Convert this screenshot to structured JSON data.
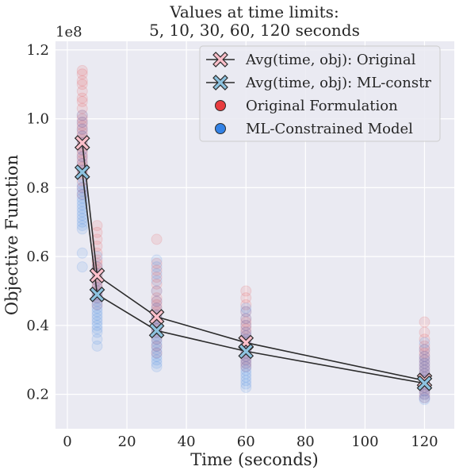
{
  "chart_data": {
    "type": "scatter",
    "title_lines": [
      "Values at time limits:",
      "5, 10, 30, 60, 120 seconds"
    ],
    "xlabel": "Time (seconds)",
    "ylabel": "Objective Function",
    "y_offset_label": "1e8",
    "xlim": [
      -4,
      130
    ],
    "ylim": [
      0.1,
      1.225
    ],
    "x_ticks": [
      0,
      20,
      40,
      60,
      80,
      100,
      120
    ],
    "y_ticks": [
      0.2,
      0.4,
      0.6,
      0.8,
      1.0,
      1.2
    ],
    "y_tick_labels": [
      "0.2",
      "0.4",
      "0.6",
      "0.8",
      "1.0",
      "1.2"
    ],
    "grid": true,
    "legend_position": "top-right",
    "legend": [
      {
        "label": "Avg(time, obj): Original",
        "kind": "line-x",
        "color": "#ffc0cb"
      },
      {
        "label": "Avg(time, obj): ML-constr",
        "kind": "line-x",
        "color": "#8ec3e0"
      },
      {
        "label": "Original Formulation",
        "kind": "dot",
        "color": "#e8292b"
      },
      {
        "label": "ML-Constrained Model",
        "kind": "dot",
        "color": "#1f77e4"
      }
    ],
    "series": [
      {
        "name": "Avg(time, obj): Original",
        "x": [
          5,
          10,
          30,
          60,
          120
        ],
        "y": [
          0.93,
          0.545,
          0.425,
          0.35,
          0.24
        ]
      },
      {
        "name": "Avg(time, obj): ML-constr",
        "x": [
          5,
          10,
          30,
          60,
          120
        ],
        "y": [
          0.845,
          0.49,
          0.385,
          0.325,
          0.232
        ]
      }
    ],
    "scatter": [
      {
        "name": "Original Formulation",
        "color": "#e8292b",
        "points": [
          {
            "x": 5,
            "y": [
              1.14,
              1.13,
              1.11,
              1.1,
              1.08,
              1.06,
              1.05,
              1.03,
              1.01,
              1.0,
              0.99,
              0.98,
              0.97,
              0.96,
              0.95,
              0.94,
              0.93,
              0.92,
              0.91,
              0.9,
              0.89,
              0.88,
              0.87,
              0.86,
              0.85,
              0.84,
              0.82,
              0.8,
              0.78
            ]
          },
          {
            "x": 10,
            "y": [
              0.69,
              0.67,
              0.65,
              0.63,
              0.61,
              0.59,
              0.58,
              0.57,
              0.56,
              0.55,
              0.54,
              0.53,
              0.52,
              0.51,
              0.5,
              0.49,
              0.48,
              0.46
            ]
          },
          {
            "x": 30,
            "y": [
              0.65,
              0.58,
              0.56,
              0.54,
              0.52,
              0.5,
              0.48,
              0.47,
              0.46,
              0.45,
              0.44,
              0.43,
              0.42,
              0.41,
              0.4,
              0.39,
              0.38,
              0.36,
              0.34,
              0.32
            ]
          },
          {
            "x": 60,
            "y": [
              0.5,
              0.48,
              0.46,
              0.44,
              0.42,
              0.41,
              0.4,
              0.39,
              0.38,
              0.37,
              0.36,
              0.35,
              0.34,
              0.33,
              0.32,
              0.31,
              0.3,
              0.29,
              0.28
            ]
          },
          {
            "x": 120,
            "y": [
              0.41,
              0.38,
              0.36,
              0.34,
              0.33,
              0.32,
              0.31,
              0.3,
              0.29,
              0.28,
              0.27,
              0.26,
              0.25,
              0.24,
              0.23,
              0.22,
              0.21,
              0.2,
              0.19
            ]
          }
        ]
      },
      {
        "name": "ML-Constrained Model",
        "color": "#1f77e4",
        "points": [
          {
            "x": 5,
            "y": [
              1.01,
              0.99,
              0.97,
              0.95,
              0.93,
              0.91,
              0.89,
              0.87,
              0.85,
              0.83,
              0.81,
              0.8,
              0.79,
              0.78,
              0.77,
              0.76,
              0.75,
              0.74,
              0.73,
              0.72,
              0.71,
              0.7,
              0.69,
              0.68,
              0.61,
              0.57
            ]
          },
          {
            "x": 10,
            "y": [
              0.6,
              0.57,
              0.55,
              0.53,
              0.51,
              0.5,
              0.49,
              0.48,
              0.47,
              0.46,
              0.45,
              0.44,
              0.43,
              0.42,
              0.41,
              0.4,
              0.39,
              0.38,
              0.36,
              0.34
            ]
          },
          {
            "x": 30,
            "y": [
              0.59,
              0.57,
              0.55,
              0.53,
              0.5,
              0.47,
              0.45,
              0.43,
              0.42,
              0.41,
              0.4,
              0.39,
              0.38,
              0.37,
              0.36,
              0.35,
              0.34,
              0.33,
              0.32,
              0.31,
              0.3,
              0.29,
              0.28
            ]
          },
          {
            "x": 60,
            "y": [
              0.45,
              0.44,
              0.42,
              0.4,
              0.38,
              0.37,
              0.36,
              0.35,
              0.34,
              0.33,
              0.32,
              0.31,
              0.3,
              0.29,
              0.28,
              0.27,
              0.26,
              0.25,
              0.24,
              0.23,
              0.22
            ]
          },
          {
            "x": 120,
            "y": [
              0.35,
              0.33,
              0.31,
              0.3,
              0.29,
              0.28,
              0.27,
              0.26,
              0.25,
              0.24,
              0.23,
              0.22,
              0.21,
              0.2,
              0.19,
              0.185
            ]
          }
        ]
      }
    ]
  }
}
